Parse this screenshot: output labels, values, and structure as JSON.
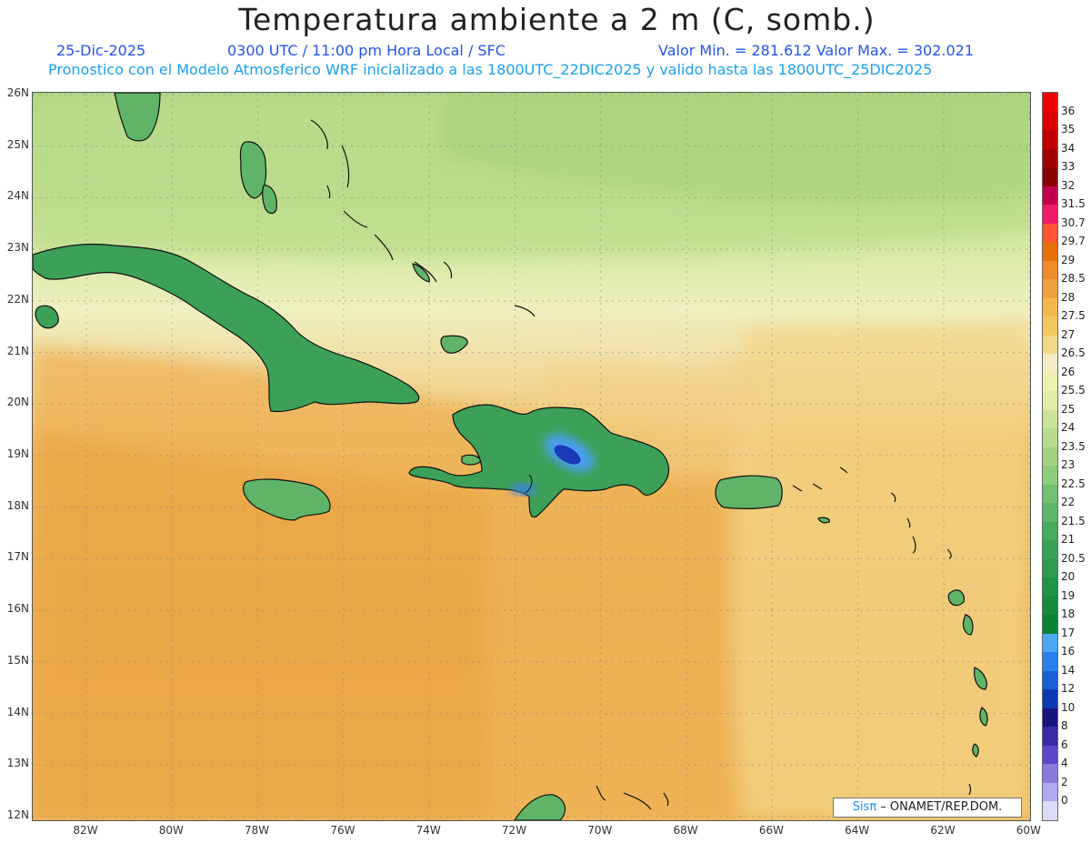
{
  "title": "Temperatura ambiente a 2 m (C, somb.)",
  "date": "25-Dic-2025",
  "time_info": "0300 UTC / 11:00 pm Hora Local / SFC",
  "min_max": "Valor Min. = 281.612  Valor Max. = 302.021",
  "forecast_note": "Pronostico con el Modelo Atmosferico WRF inicializado a las 1800UTC_22DIC2025 y valido hasta las  1800UTC_25DIC2025",
  "lat_labels": [
    "26N",
    "25N",
    "24N",
    "23N",
    "22N",
    "21N",
    "20N",
    "19N",
    "18N",
    "17N",
    "16N",
    "15N",
    "14N",
    "13N",
    "12N"
  ],
  "lon_labels": [
    "82W",
    "80W",
    "78W",
    "76W",
    "74W",
    "72W",
    "70W",
    "68W",
    "66W",
    "64W",
    "62W",
    "60W"
  ],
  "colorbar": [
    {
      "v": "36",
      "c": "#ee0000"
    },
    {
      "v": "35",
      "c": "#dd0000"
    },
    {
      "v": "34",
      "c": "#c00000"
    },
    {
      "v": "33",
      "c": "#a00000"
    },
    {
      "v": "32",
      "c": "#880000"
    },
    {
      "v": "31.5",
      "c": "#c0004a"
    },
    {
      "v": "30.7",
      "c": "#f01a6a"
    },
    {
      "v": "29.7",
      "c": "#ff5533"
    },
    {
      "v": "29",
      "c": "#e87008"
    },
    {
      "v": "28.5",
      "c": "#ee8c2a"
    },
    {
      "v": "28",
      "c": "#f0a03c"
    },
    {
      "v": "27.5",
      "c": "#f4b84c"
    },
    {
      "v": "27",
      "c": "#f4c860"
    },
    {
      "v": "26.5",
      "c": "#f4d88a"
    },
    {
      "v": "26",
      "c": "#f4ecc4"
    },
    {
      "v": "25.5",
      "c": "#eef0b0"
    },
    {
      "v": "25",
      "c": "#e0eca4"
    },
    {
      "v": "24",
      "c": "#cce498"
    },
    {
      "v": "23.5",
      "c": "#b8dc8c"
    },
    {
      "v": "23",
      "c": "#a4d480"
    },
    {
      "v": "22.5",
      "c": "#8ccc7a"
    },
    {
      "v": "22",
      "c": "#74c070"
    },
    {
      "v": "21.5",
      "c": "#5cb868"
    },
    {
      "v": "21",
      "c": "#44ac5c"
    },
    {
      "v": "20.5",
      "c": "#36a454"
    },
    {
      "v": "20",
      "c": "#2a9c4c"
    },
    {
      "v": "19",
      "c": "#1e9444"
    },
    {
      "v": "18",
      "c": "#148c3c"
    },
    {
      "v": "17",
      "c": "#0a8434"
    },
    {
      "v": "16",
      "c": "#4aa8f4"
    },
    {
      "v": "14",
      "c": "#2a80e8"
    },
    {
      "v": "12",
      "c": "#1460d4"
    },
    {
      "v": "10",
      "c": "#0a3ab0"
    },
    {
      "v": "8",
      "c": "#1a1480"
    },
    {
      "v": "6",
      "c": "#3a2aa8"
    },
    {
      "v": "4",
      "c": "#5a48c8"
    },
    {
      "v": "2",
      "c": "#8a7ae0"
    },
    {
      "v": "0",
      "c": "#b0a8f0"
    },
    {
      "v": "",
      "c": "#dcdcf8"
    }
  ],
  "credit_brand": "Sisπ",
  "credit_text": " – ONAMET/REP.DOM."
}
